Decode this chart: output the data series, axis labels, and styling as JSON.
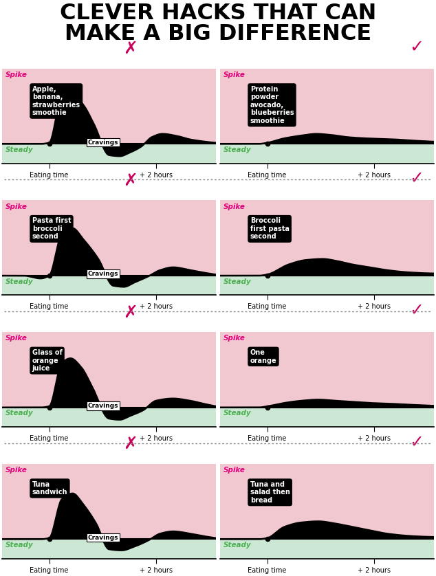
{
  "title_line1": "CLEVER HACKS THAT CAN",
  "title_line2": "MAKE A BIG DIFFERENCE",
  "bg_color": "#ffffff",
  "pink_bg": "#f2c8d0",
  "green_bg": "#cce8d4",
  "spike_color": "#e0007a",
  "steady_color": "#4caf50",
  "cross_color": "#c8005a",
  "check_color": "#c8005a",
  "panels": [
    {
      "label_bad": "Apple,\nbanana,\nstrawberries\nsmoothie",
      "label_good": "Protein\npowder\navocado,\nblueberries\nsmoothie",
      "bad_curve_x": [
        0,
        0.1,
        0.18,
        0.22,
        0.28,
        0.33,
        0.38,
        0.43,
        0.5,
        0.55,
        0.6,
        0.65,
        0.7,
        0.75,
        0.82,
        0.88,
        0.95,
        1.0
      ],
      "bad_curve_y": [
        0,
        0,
        0,
        0.02,
        0.85,
        0.9,
        0.7,
        0.35,
        -0.2,
        -0.22,
        -0.15,
        -0.05,
        0.12,
        0.18,
        0.14,
        0.08,
        0.04,
        0.02
      ],
      "good_curve_x": [
        0,
        0.1,
        0.18,
        0.22,
        0.3,
        0.38,
        0.45,
        0.52,
        0.6,
        0.68,
        0.75,
        0.82,
        0.9,
        1.0
      ],
      "good_curve_y": [
        0,
        0,
        0,
        0.02,
        0.1,
        0.15,
        0.18,
        0.16,
        0.12,
        0.1,
        0.09,
        0.08,
        0.06,
        0.04
      ],
      "bad_has_cravings": true
    },
    {
      "label_bad": "Pasta first\nbroccoli\nsecond",
      "label_good": "Broccoli\nfirst pasta\nsecond",
      "bad_curve_x": [
        0,
        0.1,
        0.18,
        0.22,
        0.28,
        0.33,
        0.38,
        0.45,
        0.52,
        0.57,
        0.62,
        0.68,
        0.74,
        0.8,
        0.88,
        0.95,
        1.0
      ],
      "bad_curve_y": [
        0,
        0,
        -0.05,
        0.0,
        0.75,
        0.85,
        0.65,
        0.3,
        -0.18,
        -0.2,
        -0.12,
        -0.02,
        0.1,
        0.15,
        0.1,
        0.05,
        0.02
      ],
      "good_curve_x": [
        0,
        0.1,
        0.18,
        0.22,
        0.32,
        0.4,
        0.48,
        0.55,
        0.62,
        0.7,
        0.78,
        0.88,
        1.0
      ],
      "good_curve_y": [
        0,
        0,
        0,
        0.02,
        0.2,
        0.28,
        0.3,
        0.26,
        0.2,
        0.15,
        0.1,
        0.06,
        0.04
      ],
      "bad_has_cravings": true
    },
    {
      "label_bad": "Glass of\norange\njuice",
      "label_good": "One\norange",
      "bad_curve_x": [
        0,
        0.1,
        0.18,
        0.22,
        0.28,
        0.32,
        0.37,
        0.42,
        0.5,
        0.55,
        0.6,
        0.66,
        0.72,
        0.8,
        0.88,
        0.95,
        1.0
      ],
      "bad_curve_y": [
        0,
        0,
        0,
        0.02,
        0.8,
        0.88,
        0.72,
        0.38,
        -0.2,
        -0.22,
        -0.15,
        -0.05,
        0.12,
        0.16,
        0.12,
        0.06,
        0.02
      ],
      "good_curve_x": [
        0,
        0.1,
        0.18,
        0.22,
        0.3,
        0.38,
        0.46,
        0.54,
        0.62,
        0.7,
        0.78,
        0.88,
        1.0
      ],
      "good_curve_y": [
        0,
        0,
        0,
        0.02,
        0.08,
        0.12,
        0.14,
        0.12,
        0.1,
        0.08,
        0.07,
        0.05,
        0.03
      ],
      "bad_has_cravings": true
    },
    {
      "label_bad": "Tuna\nsandwich",
      "label_good": "Tuna and\nsalad then\nbread",
      "bad_curve_x": [
        0,
        0.1,
        0.18,
        0.22,
        0.28,
        0.33,
        0.38,
        0.44,
        0.5,
        0.56,
        0.62,
        0.68,
        0.74,
        0.8,
        0.88,
        0.95,
        1.0
      ],
      "bad_curve_y": [
        0,
        0,
        0,
        0.02,
        0.72,
        0.82,
        0.62,
        0.28,
        -0.18,
        -0.2,
        -0.13,
        -0.03,
        0.1,
        0.14,
        0.1,
        0.05,
        0.02
      ],
      "good_curve_x": [
        0,
        0.1,
        0.18,
        0.22,
        0.3,
        0.38,
        0.46,
        0.54,
        0.62,
        0.7,
        0.78,
        0.88,
        1.0
      ],
      "good_curve_y": [
        0,
        0,
        0,
        0.02,
        0.22,
        0.3,
        0.32,
        0.28,
        0.22,
        0.16,
        0.1,
        0.06,
        0.04
      ],
      "bad_has_cravings": true
    }
  ]
}
